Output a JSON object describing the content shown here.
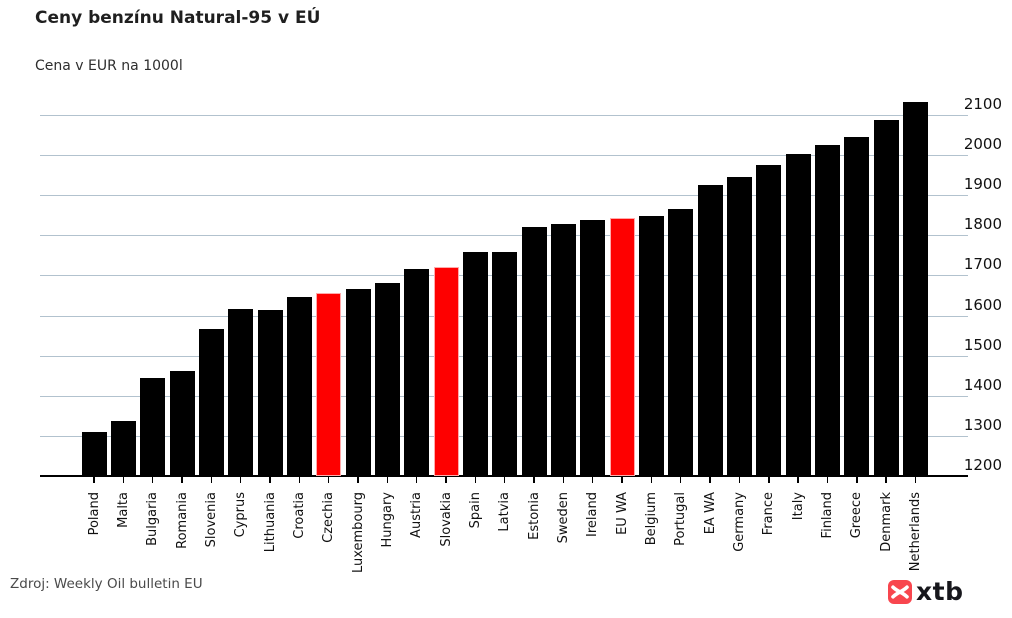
{
  "header": {
    "title": "Ceny benzínu Natural-95 v EÚ",
    "subtitle": "Cena v EUR na 1000l"
  },
  "footer": {
    "source": "Zdroj: Weekly Oil bulletin EU",
    "logo_text": "xtb",
    "logo_color": "#f8464e"
  },
  "chart_data": {
    "type": "bar",
    "title": "Ceny benzínu Natural-95 v EÚ",
    "ylabel": "Cena v EUR na 1000l",
    "categories": [
      "Poland",
      "Malta",
      "Bulgaria",
      "Romania",
      "Slovenia",
      "Cyprus",
      "Lithuania",
      "Croatia",
      "Czechia",
      "Luxembourg",
      "Hungary",
      "Austria",
      "Slovakia",
      "Spain",
      "Latvia",
      "Estonia",
      "Sweden",
      "Ireland",
      "EU WA",
      "Belgium",
      "Portugal",
      "EA WA",
      "Germany",
      "France",
      "Italy",
      "Finland",
      "Greece",
      "Denmark",
      "Netherlands"
    ],
    "values": [
      1310,
      1338,
      1445,
      1462,
      1566,
      1616,
      1613,
      1646,
      1657,
      1666,
      1682,
      1716,
      1722,
      1758,
      1758,
      1821,
      1829,
      1839,
      1843,
      1848,
      1866,
      1926,
      1946,
      1976,
      2003,
      2026,
      2044,
      2087,
      2133
    ],
    "highlighted": [
      "Czechia",
      "Slovakia",
      "EU WA"
    ],
    "bar_color": "#000000",
    "highlight_color": "#fe0000",
    "grid": true,
    "gridline_color": "#b2c2ce",
    "axis_side": "right",
    "y_ticks": [
      1200,
      1300,
      1400,
      1500,
      1600,
      1700,
      1800,
      1900,
      2000,
      2100
    ],
    "ylim": [
      1200,
      2150
    ],
    "source": "Zdroj: Weekly Oil bulletin EU"
  }
}
